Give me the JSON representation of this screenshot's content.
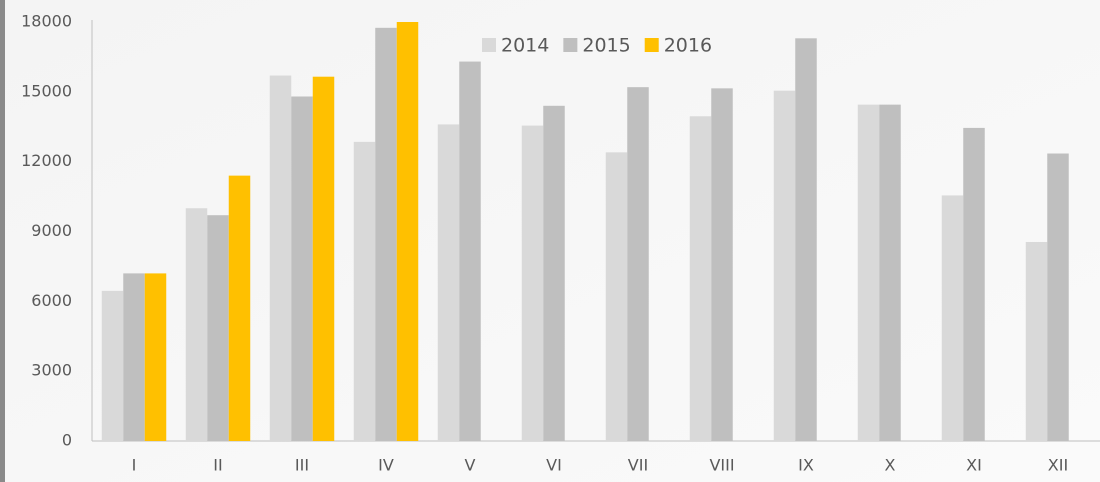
{
  "chart_data": {
    "type": "bar",
    "categories": [
      "I",
      "II",
      "III",
      "IV",
      "V",
      "VI",
      "VII",
      "VIII",
      "IX",
      "X",
      "XI",
      "XII"
    ],
    "series": [
      {
        "name": "2014",
        "color": "#d9d9d9",
        "values": [
          6450,
          10000,
          15700,
          12850,
          13600,
          13550,
          12400,
          13950,
          15050,
          14450,
          10550,
          8550
        ]
      },
      {
        "name": "2015",
        "color": "#bfbfbf",
        "values": [
          7200,
          9700,
          14800,
          17750,
          16300,
          14400,
          15200,
          15150,
          17300,
          14450,
          13450,
          12350
        ]
      },
      {
        "name": "2016",
        "color": "#ffc000",
        "values": [
          7200,
          11400,
          15650,
          18000,
          null,
          null,
          null,
          null,
          null,
          null,
          null,
          null
        ]
      }
    ],
    "ylim": [
      0,
      18000
    ],
    "yticks": [
      0,
      3000,
      6000,
      9000,
      12000,
      15000,
      18000
    ],
    "grid": false,
    "legend": "top"
  }
}
